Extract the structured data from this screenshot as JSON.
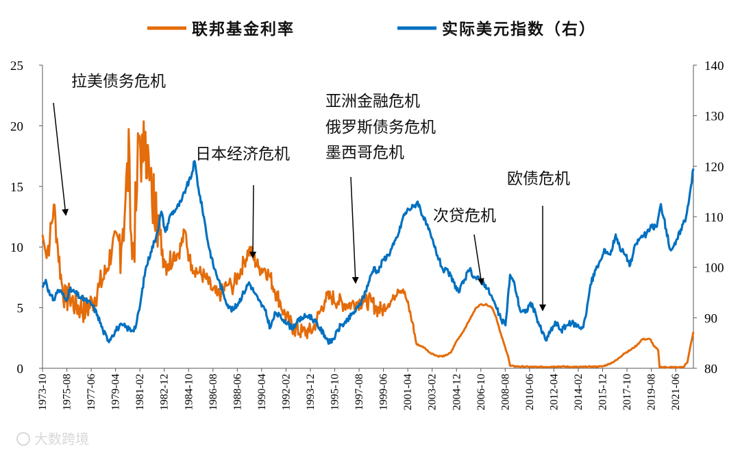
{
  "chart_data": {
    "type": "line",
    "title": "",
    "legend_position": "top",
    "left_axis": {
      "ylim": [
        0,
        25
      ],
      "ticks": [
        0,
        5,
        10,
        15,
        20,
        25
      ]
    },
    "right_axis": {
      "ylim": [
        80,
        140
      ],
      "ticks": [
        80,
        90,
        100,
        110,
        120,
        130,
        140
      ]
    },
    "x_range": [
      1973.75,
      2022.75
    ],
    "x_tick_labels": [
      "1973-10",
      "1975-08",
      "1977-06",
      "1979-04",
      "1981-02",
      "1982-12",
      "1984-10",
      "1986-08",
      "1988-06",
      "1990-04",
      "1992-02",
      "1993-12",
      "1995-10",
      "1997-08",
      "1999-06",
      "2001-04",
      "2003-02",
      "2004-12",
      "2006-10",
      "2008-08",
      "2010-06",
      "2012-04",
      "2014-02",
      "2015-12",
      "2017-10",
      "2019-08",
      "2021-06"
    ],
    "series": [
      {
        "name": "联邦基金利率",
        "axis": "left",
        "color": "#e46c0a",
        "points": [
          [
            1973.75,
            11.0
          ],
          [
            1974.0,
            9.5
          ],
          [
            1974.3,
            10.5
          ],
          [
            1974.6,
            13.5
          ],
          [
            1974.9,
            10.0
          ],
          [
            1975.2,
            7.0
          ],
          [
            1975.5,
            5.5
          ],
          [
            1975.8,
            6.0
          ],
          [
            1976.2,
            5.2
          ],
          [
            1976.6,
            5.0
          ],
          [
            1977.0,
            4.7
          ],
          [
            1977.5,
            5.5
          ],
          [
            1978.0,
            6.7
          ],
          [
            1978.5,
            7.8
          ],
          [
            1979.0,
            10.0
          ],
          [
            1979.5,
            10.5
          ],
          [
            1979.8,
            11.5
          ],
          [
            1980.0,
            14.0
          ],
          [
            1980.3,
            17.5
          ],
          [
            1980.5,
            9.0
          ],
          [
            1980.8,
            13.0
          ],
          [
            1981.0,
            19.0
          ],
          [
            1981.3,
            17.0
          ],
          [
            1981.5,
            19.5
          ],
          [
            1981.8,
            15.5
          ],
          [
            1982.0,
            13.5
          ],
          [
            1982.3,
            14.5
          ],
          [
            1982.6,
            11.0
          ],
          [
            1982.9,
            9.0
          ],
          [
            1983.2,
            8.6
          ],
          [
            1983.6,
            9.4
          ],
          [
            1984.0,
            9.5
          ],
          [
            1984.5,
            11.3
          ],
          [
            1984.8,
            9.0
          ],
          [
            1985.0,
            8.5
          ],
          [
            1985.5,
            7.9
          ],
          [
            1986.0,
            7.5
          ],
          [
            1986.5,
            6.5
          ],
          [
            1986.9,
            6.0
          ],
          [
            1987.2,
            6.2
          ],
          [
            1987.6,
            6.8
          ],
          [
            1987.8,
            7.0
          ],
          [
            1988.0,
            6.6
          ],
          [
            1988.5,
            7.7
          ],
          [
            1988.9,
            8.7
          ],
          [
            1989.3,
            9.8
          ],
          [
            1989.6,
            9.2
          ],
          [
            1990.0,
            8.3
          ],
          [
            1990.5,
            8.2
          ],
          [
            1990.9,
            7.5
          ],
          [
            1991.2,
            6.5
          ],
          [
            1991.6,
            5.6
          ],
          [
            1991.9,
            4.6
          ],
          [
            1992.3,
            3.9
          ],
          [
            1992.7,
            3.2
          ],
          [
            1993.3,
            3.0
          ],
          [
            1993.8,
            3.0
          ],
          [
            1994.1,
            3.2
          ],
          [
            1994.4,
            4.0
          ],
          [
            1994.7,
            4.8
          ],
          [
            1995.0,
            5.6
          ],
          [
            1995.5,
            5.9
          ],
          [
            1996.0,
            5.5
          ],
          [
            1996.5,
            5.3
          ],
          [
            1997.0,
            5.3
          ],
          [
            1997.5,
            5.5
          ],
          [
            1998.0,
            5.5
          ],
          [
            1998.5,
            5.5
          ],
          [
            1998.9,
            4.9
          ],
          [
            1999.3,
            4.8
          ],
          [
            1999.8,
            5.3
          ],
          [
            2000.2,
            5.8
          ],
          [
            2000.5,
            6.5
          ],
          [
            2000.9,
            6.5
          ],
          [
            2001.2,
            5.5
          ],
          [
            2001.6,
            3.8
          ],
          [
            2001.9,
            2.0
          ],
          [
            2002.5,
            1.7
          ],
          [
            2002.9,
            1.3
          ],
          [
            2003.5,
            1.0
          ],
          [
            2004.0,
            1.0
          ],
          [
            2004.5,
            1.3
          ],
          [
            2004.9,
            2.2
          ],
          [
            2005.4,
            3.0
          ],
          [
            2005.9,
            4.0
          ],
          [
            2006.4,
            5.0
          ],
          [
            2006.7,
            5.25
          ],
          [
            2007.2,
            5.25
          ],
          [
            2007.6,
            5.0
          ],
          [
            2007.9,
            4.2
          ],
          [
            2008.2,
            3.0
          ],
          [
            2008.5,
            2.0
          ],
          [
            2008.8,
            1.0
          ],
          [
            2008.95,
            0.2
          ],
          [
            2009.5,
            0.15
          ],
          [
            2011.0,
            0.1
          ],
          [
            2012.5,
            0.15
          ],
          [
            2014.0,
            0.1
          ],
          [
            2015.9,
            0.15
          ],
          [
            2016.5,
            0.4
          ],
          [
            2017.0,
            0.7
          ],
          [
            2017.5,
            1.2
          ],
          [
            2018.0,
            1.5
          ],
          [
            2018.5,
            1.9
          ],
          [
            2018.9,
            2.4
          ],
          [
            2019.5,
            2.4
          ],
          [
            2019.8,
            1.8
          ],
          [
            2020.1,
            1.5
          ],
          [
            2020.2,
            0.1
          ],
          [
            2021.5,
            0.08
          ],
          [
            2022.0,
            0.1
          ],
          [
            2022.3,
            0.5
          ],
          [
            2022.5,
            1.7
          ],
          [
            2022.75,
            3.0
          ]
        ]
      },
      {
        "name": "实际美元指数（右）",
        "axis": "right",
        "color": "#0070c0",
        "points": [
          [
            1973.75,
            96.0
          ],
          [
            1974.0,
            97.5
          ],
          [
            1974.3,
            94.5
          ],
          [
            1974.6,
            93.5
          ],
          [
            1974.9,
            95.5
          ],
          [
            1975.2,
            95.0
          ],
          [
            1975.5,
            93.5
          ],
          [
            1975.8,
            95.5
          ],
          [
            1976.2,
            95.0
          ],
          [
            1976.6,
            94.0
          ],
          [
            1977.0,
            93.5
          ],
          [
            1977.5,
            92.5
          ],
          [
            1977.9,
            90.5
          ],
          [
            1978.3,
            87.5
          ],
          [
            1978.7,
            85.5
          ],
          [
            1979.0,
            86.5
          ],
          [
            1979.4,
            88.0
          ],
          [
            1979.8,
            88.5
          ],
          [
            1980.1,
            88.0
          ],
          [
            1980.5,
            87.5
          ],
          [
            1980.8,
            88.5
          ],
          [
            1981.1,
            92.5
          ],
          [
            1981.5,
            99.5
          ],
          [
            1981.9,
            103.0
          ],
          [
            1982.3,
            106.0
          ],
          [
            1982.7,
            111.0
          ],
          [
            1983.0,
            107.0
          ],
          [
            1983.4,
            110.5
          ],
          [
            1983.8,
            111.5
          ],
          [
            1984.2,
            113.0
          ],
          [
            1984.6,
            116.0
          ],
          [
            1984.9,
            117.5
          ],
          [
            1985.2,
            121.0
          ],
          [
            1985.5,
            115.5
          ],
          [
            1985.9,
            110.0
          ],
          [
            1986.2,
            105.0
          ],
          [
            1986.6,
            100.5
          ],
          [
            1987.0,
            97.5
          ],
          [
            1987.4,
            94.5
          ],
          [
            1987.8,
            92.0
          ],
          [
            1988.1,
            91.5
          ],
          [
            1988.5,
            93.0
          ],
          [
            1988.9,
            95.0
          ],
          [
            1989.3,
            97.0
          ],
          [
            1989.7,
            95.0
          ],
          [
            1990.0,
            93.5
          ],
          [
            1990.5,
            91.5
          ],
          [
            1990.9,
            88.0
          ],
          [
            1991.3,
            91.0
          ],
          [
            1991.7,
            90.0
          ],
          [
            1992.0,
            89.5
          ],
          [
            1992.5,
            88.0
          ],
          [
            1992.9,
            89.0
          ],
          [
            1993.3,
            90.0
          ],
          [
            1993.8,
            90.5
          ],
          [
            1994.2,
            89.5
          ],
          [
            1994.6,
            88.0
          ],
          [
            1995.0,
            86.5
          ],
          [
            1995.4,
            85.0
          ],
          [
            1995.8,
            86.5
          ],
          [
            1996.2,
            88.5
          ],
          [
            1996.6,
            89.0
          ],
          [
            1997.0,
            90.5
          ],
          [
            1997.5,
            92.0
          ],
          [
            1997.9,
            94.0
          ],
          [
            1998.3,
            97.0
          ],
          [
            1998.7,
            100.0
          ],
          [
            1999.0,
            99.0
          ],
          [
            1999.4,
            101.5
          ],
          [
            1999.8,
            102.5
          ],
          [
            2000.2,
            104.5
          ],
          [
            2000.6,
            107.0
          ],
          [
            2000.9,
            110.0
          ],
          [
            2001.3,
            111.5
          ],
          [
            2001.7,
            112.0
          ],
          [
            2002.0,
            113.0
          ],
          [
            2002.4,
            110.0
          ],
          [
            2002.8,
            107.5
          ],
          [
            2003.2,
            104.5
          ],
          [
            2003.6,
            101.5
          ],
          [
            2003.9,
            99.5
          ],
          [
            2004.3,
            99.0
          ],
          [
            2004.7,
            97.0
          ],
          [
            2005.1,
            95.0
          ],
          [
            2005.5,
            97.5
          ],
          [
            2005.9,
            99.5
          ],
          [
            2006.3,
            98.0
          ],
          [
            2006.7,
            97.5
          ],
          [
            2007.1,
            96.5
          ],
          [
            2007.5,
            94.5
          ],
          [
            2007.9,
            92.0
          ],
          [
            2008.3,
            89.5
          ],
          [
            2008.6,
            88.5
          ],
          [
            2008.95,
            98.5
          ],
          [
            2009.3,
            96.5
          ],
          [
            2009.7,
            91.5
          ],
          [
            2010.1,
            91.0
          ],
          [
            2010.5,
            93.0
          ],
          [
            2010.9,
            90.5
          ],
          [
            2011.3,
            87.5
          ],
          [
            2011.7,
            85.5
          ],
          [
            2012.0,
            87.5
          ],
          [
            2012.4,
            89.0
          ],
          [
            2012.8,
            87.5
          ],
          [
            2013.2,
            88.5
          ],
          [
            2013.6,
            89.0
          ],
          [
            2014.0,
            88.5
          ],
          [
            2014.4,
            88.0
          ],
          [
            2014.7,
            91.0
          ],
          [
            2015.0,
            96.5
          ],
          [
            2015.4,
            99.5
          ],
          [
            2015.8,
            101.5
          ],
          [
            2016.1,
            103.5
          ],
          [
            2016.5,
            102.5
          ],
          [
            2016.9,
            106.5
          ],
          [
            2017.2,
            104.0
          ],
          [
            2017.6,
            102.5
          ],
          [
            2018.0,
            100.5
          ],
          [
            2018.4,
            104.5
          ],
          [
            2018.8,
            106.0
          ],
          [
            2019.2,
            106.5
          ],
          [
            2019.6,
            108.0
          ],
          [
            2020.0,
            108.0
          ],
          [
            2020.3,
            112.5
          ],
          [
            2020.7,
            107.5
          ],
          [
            2021.0,
            103.5
          ],
          [
            2021.4,
            104.5
          ],
          [
            2021.8,
            107.5
          ],
          [
            2022.2,
            110.0
          ],
          [
            2022.5,
            115.0
          ],
          [
            2022.75,
            119.5
          ]
        ]
      }
    ],
    "annotations": [
      {
        "text": "拉美债务危机",
        "point_year": 1975.3,
        "point_value": 12.5
      },
      {
        "text": "日本经济危机",
        "point_year": 1989.4,
        "point_value": 9.2
      },
      {
        "text": "亚洲金融危机",
        "point_year": 1997.9,
        "point_value": 7.0
      },
      {
        "text": "俄罗斯债务危机",
        "point_year": 1997.9,
        "point_value": 7.0
      },
      {
        "text": "墨西哥危机",
        "point_year": 1997.9,
        "point_value": 7.0
      },
      {
        "text": "次贷危机",
        "point_year": 2007.2,
        "point_value": 6.8
      },
      {
        "text": "欧债危机",
        "point_year": 2011.6,
        "point_value": 4.8
      }
    ]
  },
  "watermark": "大数跨境"
}
